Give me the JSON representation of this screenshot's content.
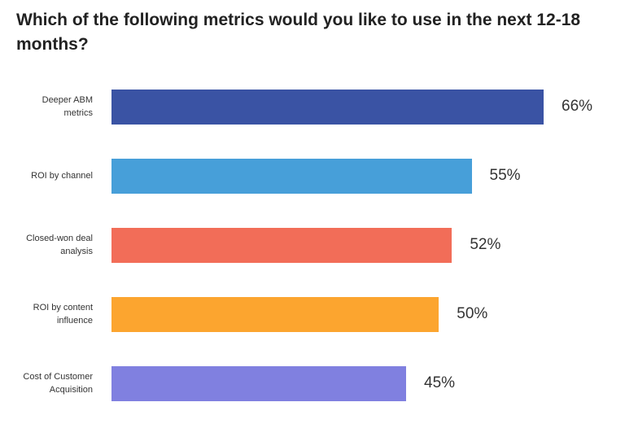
{
  "chart_data": {
    "type": "bar",
    "orientation": "horizontal",
    "title": "Which of the following metrics would you like to use in the next 12-18 months?",
    "categories": [
      "Deeper ABM metrics",
      "ROI by channel",
      "Closed-won deal analysis",
      "ROI by content influence",
      "Cost of Customer Acquisition"
    ],
    "values": [
      66,
      55,
      52,
      50,
      45
    ],
    "value_labels": [
      "66%",
      "55%",
      "52%",
      "50%",
      "45%"
    ],
    "colors": [
      "#3a53a4",
      "#479fd9",
      "#f26d58",
      "#fca52f",
      "#8080e0"
    ]
  }
}
